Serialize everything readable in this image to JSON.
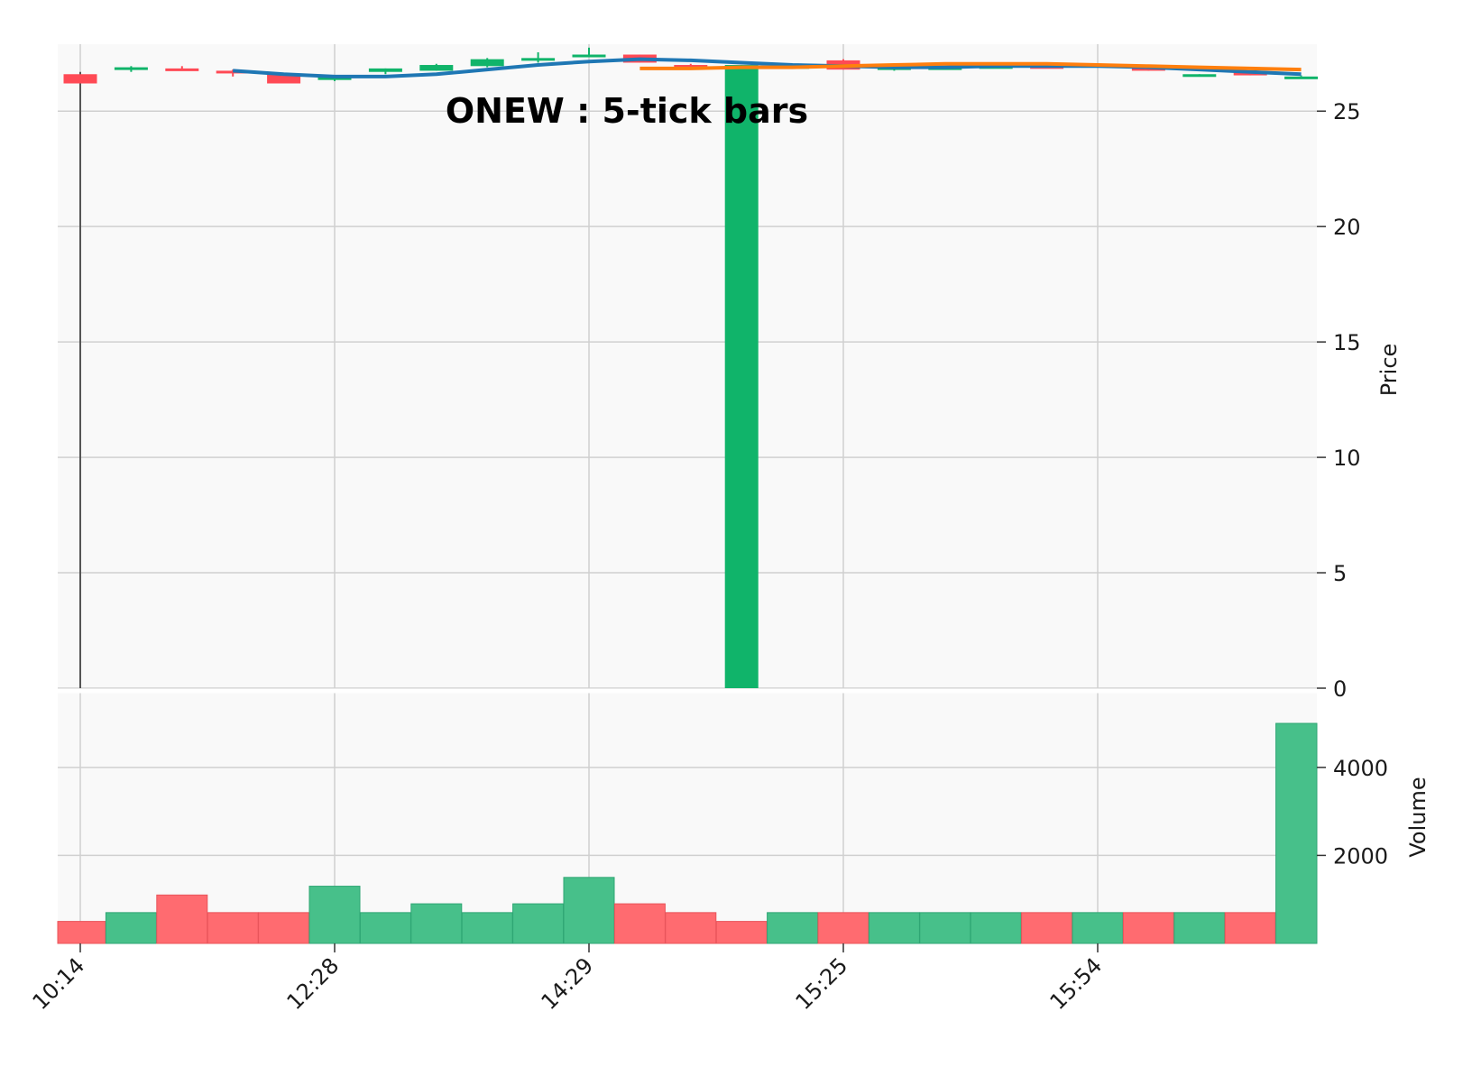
{
  "chart_data": {
    "type": "candlestick",
    "title": "ONEW : 5-tick bars",
    "ohlc": [
      {
        "open": 26.6,
        "high": 26.7,
        "low": 0.0,
        "close": 26.2
      },
      {
        "open": 26.8,
        "high": 26.95,
        "low": 26.7,
        "close": 26.9
      },
      {
        "open": 26.85,
        "high": 26.95,
        "low": 26.8,
        "close": 26.8
      },
      {
        "open": 26.75,
        "high": 26.8,
        "low": 26.5,
        "close": 26.7
      },
      {
        "open": 26.6,
        "high": 26.6,
        "low": 26.2,
        "close": 26.2
      },
      {
        "open": 26.35,
        "high": 26.5,
        "low": 26.3,
        "close": 26.5
      },
      {
        "open": 26.7,
        "high": 26.85,
        "low": 26.6,
        "close": 26.85
      },
      {
        "open": 26.75,
        "high": 27.05,
        "low": 26.75,
        "close": 27.0
      },
      {
        "open": 26.95,
        "high": 27.3,
        "low": 26.9,
        "close": 27.25
      },
      {
        "open": 27.2,
        "high": 27.55,
        "low": 27.1,
        "close": 27.3
      },
      {
        "open": 27.4,
        "high": 27.75,
        "low": 27.35,
        "close": 27.45
      },
      {
        "open": 27.45,
        "high": 27.45,
        "low": 27.1,
        "close": 27.1
      },
      {
        "open": 27.0,
        "high": 27.05,
        "low": 26.9,
        "close": 26.9
      },
      {
        "open": 27.0,
        "high": 27.0,
        "low": 0.0,
        "close": 0.0
      },
      {
        "open": 26.95,
        "high": 27.0,
        "low": 26.9,
        "close": 26.95
      },
      {
        "open": 27.2,
        "high": 27.25,
        "low": 26.8,
        "close": 26.8
      },
      {
        "open": 26.85,
        "high": 26.9,
        "low": 26.75,
        "close": 26.9
      },
      {
        "open": 26.85,
        "high": 26.9,
        "low": 26.8,
        "close": 26.9
      },
      {
        "open": 26.95,
        "high": 27.0,
        "low": 26.9,
        "close": 26.95
      },
      {
        "open": 26.95,
        "high": 26.95,
        "low": 26.85,
        "close": 26.85
      },
      {
        "open": 26.95,
        "high": 27.0,
        "low": 26.95,
        "close": 27.0
      },
      {
        "open": 26.95,
        "high": 26.95,
        "low": 26.75,
        "close": 26.75
      },
      {
        "open": 26.55,
        "high": 26.6,
        "low": 26.5,
        "close": 26.6
      },
      {
        "open": 26.7,
        "high": 26.7,
        "low": 26.55,
        "close": 26.55
      },
      {
        "open": 26.5,
        "high": 26.55,
        "low": 26.5,
        "close": 26.5
      }
    ],
    "volume": [
      500,
      700,
      1100,
      700,
      700,
      1300,
      700,
      900,
      700,
      900,
      1500,
      900,
      700,
      500,
      700,
      700,
      700,
      700,
      700,
      700,
      700,
      700,
      700,
      700,
      5000
    ],
    "moving_averages": [
      {
        "color": "#1f77b4",
        "values": [
          null,
          null,
          null,
          26.75,
          26.6,
          26.5,
          26.5,
          26.6,
          26.8,
          27.0,
          27.15,
          27.25,
          27.2,
          27.1,
          27.0,
          26.95,
          26.9,
          26.9,
          26.95,
          26.95,
          26.95,
          26.9,
          26.8,
          26.7,
          26.6
        ]
      },
      {
        "color": "#ff7f0e",
        "values": [
          null,
          null,
          null,
          null,
          null,
          null,
          null,
          null,
          null,
          null,
          null,
          26.85,
          26.85,
          26.9,
          26.9,
          26.95,
          27.0,
          27.05,
          27.05,
          27.05,
          27.0,
          26.95,
          26.9,
          26.85,
          26.8
        ]
      }
    ],
    "x_tick_labels": [
      {
        "index": 0,
        "label": "10:14"
      },
      {
        "index": 5,
        "label": "12:28"
      },
      {
        "index": 10,
        "label": "14:29"
      },
      {
        "index": 15,
        "label": "15:25"
      },
      {
        "index": 20,
        "label": "15:54"
      }
    ],
    "price_axis": {
      "label": "Price",
      "ylim": [
        0,
        27.9
      ],
      "ticks": [
        0,
        5,
        10,
        15,
        20,
        25
      ],
      "position": "right"
    },
    "volume_axis": {
      "label": "Volume",
      "ylim": [
        0,
        5800
      ],
      "ticks": [
        2000,
        4000
      ],
      "position": "right"
    },
    "grid": true,
    "colors": {
      "up": "#10b46a",
      "down": "#ff4a55",
      "volume_up": "#47c08a",
      "volume_down": "#ff6b70",
      "wick": "#555555",
      "plot_bg": "#f9f9f9",
      "grid": "#d0d0d0"
    }
  }
}
